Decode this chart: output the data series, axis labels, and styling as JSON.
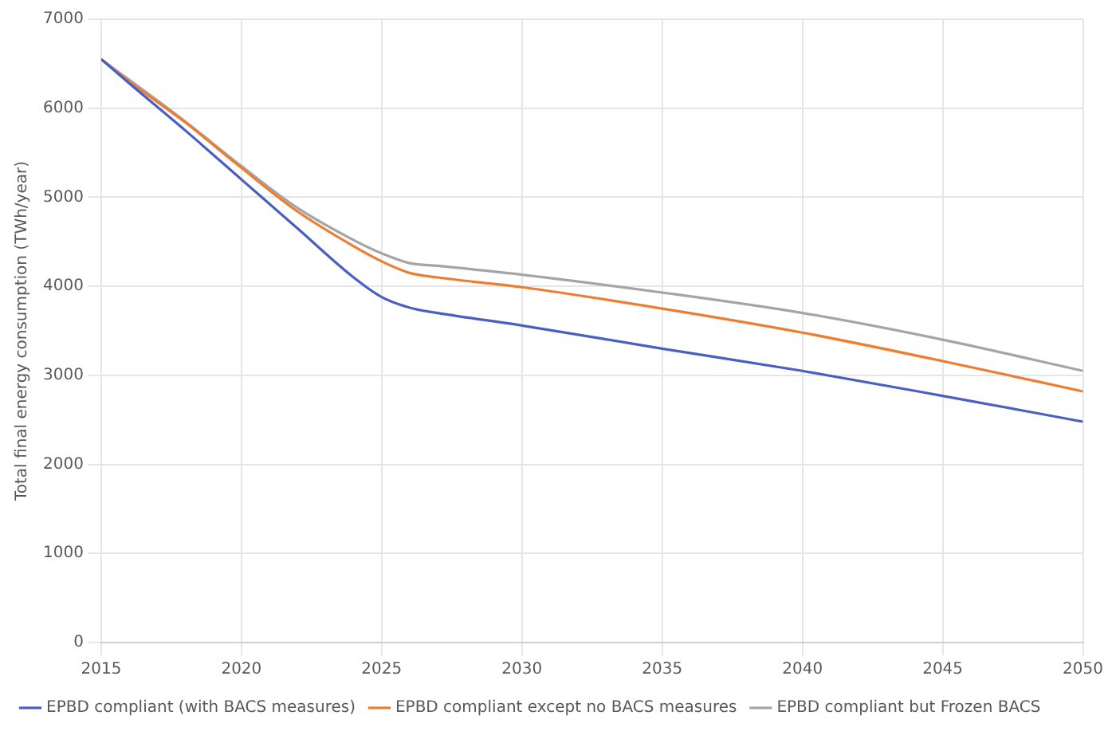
{
  "chart_data": {
    "type": "line",
    "ylabel": "Total final energy consumption (TWh/year)",
    "x": [
      2015,
      2016,
      2018,
      2020,
      2022,
      2024,
      2025,
      2026,
      2027,
      2030,
      2035,
      2040,
      2045,
      2050
    ],
    "xlim": [
      2015,
      2050
    ],
    "xticks": [
      2015,
      2020,
      2025,
      2030,
      2035,
      2040,
      2045,
      2050
    ],
    "ylim": [
      0,
      7000
    ],
    "yticks": [
      0,
      1000,
      2000,
      3000,
      4000,
      5000,
      6000,
      7000
    ],
    "grid": true,
    "legend": "bottom",
    "marker": "none",
    "line_style": "solid",
    "series": [
      {
        "name": "EPBD compliant (with BACS measures)",
        "color": "#4a5fc1",
        "values": [
          6550,
          6280,
          5750,
          5200,
          4650,
          4100,
          3880,
          3760,
          3700,
          3560,
          3300,
          3050,
          2770,
          2480
        ]
      },
      {
        "name": "EPBD compliant except no BACS measures",
        "color": "#ed7d31",
        "values": [
          6550,
          6300,
          5840,
          5330,
          4840,
          4450,
          4280,
          4150,
          4100,
          3990,
          3750,
          3480,
          3160,
          2820
        ]
      },
      {
        "name": "EPBD compliant but Frozen BACS",
        "color": "#a5a5a5",
        "values": [
          6550,
          null,
          5850,
          5350,
          4880,
          4520,
          4370,
          4260,
          4230,
          4130,
          3930,
          3700,
          3400,
          3050
        ]
      }
    ]
  }
}
